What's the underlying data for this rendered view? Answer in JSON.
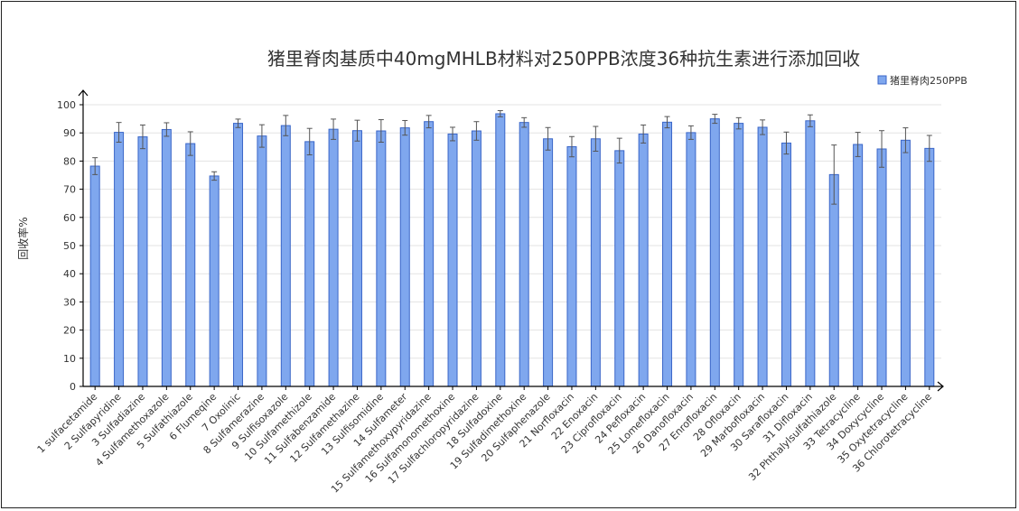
{
  "chart_data": {
    "type": "bar",
    "title": "猪里脊肉基质中40mgMHLB材料对250PPB浓度36种抗生素进行添加回收",
    "xlabel": "",
    "ylabel": "回收率%",
    "ylim": [
      0,
      100
    ],
    "yticks": [
      0,
      10,
      20,
      30,
      40,
      50,
      60,
      70,
      80,
      90,
      100
    ],
    "grid": true,
    "legend_position": "top-right",
    "categories": [
      "1 sulfacetamide",
      "2 Sulfapyridine",
      "3 Sulfadiazine",
      "4 Sulfamethoxazole",
      "5 Sulfathiazole",
      "6 Flumeqine",
      "7 Oxolinic",
      "8 Sulfamerazine",
      "9 Sulfisoxazole",
      "10 Sulfamethizole",
      "11 Sulfabenzamide",
      "12 Sulfamethazine",
      "13 Sulfisomidine",
      "14 Sulfameter",
      "15 Sulfamethoxypyridazine",
      "16 Sulfamonomethoxine",
      "17 Sulfachloropyridazine",
      "18 Sulfadoxine",
      "19 Sulfadimethoxine",
      "20 Sulfaphenazole",
      "21 Norfloxacin",
      "22 Enoxacin",
      "23 Ciprofloxacin",
      "24 Pefloxacin",
      "25 Lomefloxacin",
      "26 Danofloxacin",
      "27 Enrofloxacin",
      "28 Ofloxacin",
      "29 Marbofloxacin",
      "30 Sarafloxacin",
      "31 Difloxacin",
      "32 Phthalylsulfathiazole",
      "33 Tetracycline",
      "34 Doxycycline",
      "35 Oxytetracycline",
      "36 Chlorotetracycline"
    ],
    "series": [
      {
        "name": "猪里脊肉250PPB",
        "color": "#7fa7ee",
        "values": [
          78.2,
          90.2,
          88.6,
          91.2,
          86.2,
          74.7,
          93.4,
          88.9,
          92.6,
          86.9,
          91.3,
          90.8,
          90.7,
          91.8,
          94.0,
          89.6,
          90.7,
          96.8,
          93.7,
          87.9,
          85.1,
          87.9,
          83.7,
          89.6,
          93.8,
          90.1,
          95.0,
          93.4,
          92.0,
          86.4,
          94.3,
          75.2,
          85.9,
          84.3,
          87.4,
          84.5
        ],
        "errors": [
          3.0,
          3.5,
          4.2,
          2.4,
          4.2,
          1.5,
          1.5,
          4.0,
          3.6,
          4.7,
          3.6,
          3.7,
          4.0,
          2.6,
          2.2,
          2.4,
          3.3,
          1.1,
          1.7,
          4.0,
          3.6,
          4.4,
          4.4,
          3.2,
          2.0,
          2.4,
          1.6,
          2.0,
          2.6,
          3.9,
          2.1,
          10.5,
          4.3,
          6.5,
          4.4,
          4.6
        ]
      }
    ]
  }
}
